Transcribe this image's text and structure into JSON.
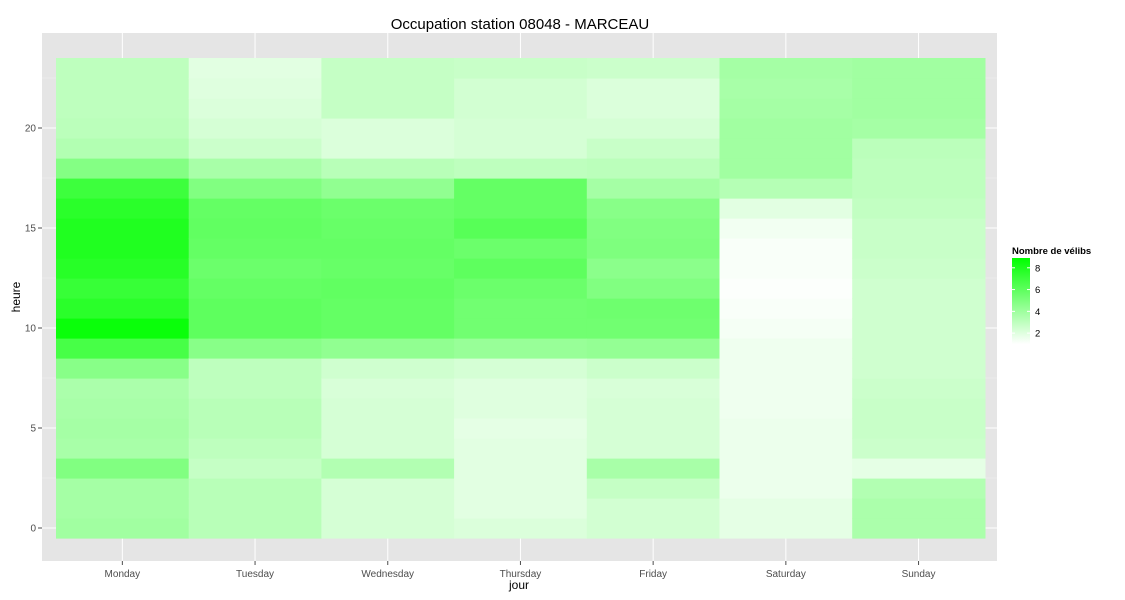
{
  "chart_data": {
    "type": "heatmap",
    "title": "Occupation station 08048 - MARCEAU",
    "xlabel": "jour",
    "ylabel": "heure",
    "categories": [
      "Monday",
      "Tuesday",
      "Wednesday",
      "Thursday",
      "Friday",
      "Saturday",
      "Sunday"
    ],
    "y_hours": [
      0,
      1,
      2,
      3,
      4,
      5,
      6,
      7,
      8,
      9,
      10,
      11,
      12,
      13,
      14,
      15,
      16,
      17,
      18,
      19,
      20,
      21,
      22,
      23
    ],
    "y_ticks": [
      0,
      5,
      10,
      15,
      20
    ],
    "y_tick_labels": [
      "0",
      "5",
      "10",
      "15",
      "20"
    ],
    "ylim": [
      -0.5,
      23.5
    ],
    "values": {
      "Monday": [
        3.9,
        3.8,
        3.8,
        4.9,
        3.7,
        3.8,
        3.7,
        3.6,
        4.7,
        6.7,
        8.6,
        7.6,
        7.2,
        7.7,
        7.9,
        7.9,
        7.6,
        7.0,
        4.8,
        3.4,
        3.1,
        3.0,
        3.0,
        3.0
      ],
      "Tuesday": [
        3.2,
        3.2,
        3.2,
        2.8,
        3.0,
        3.2,
        3.2,
        3.0,
        3.0,
        4.7,
        6.0,
        6.0,
        5.8,
        5.6,
        5.8,
        5.9,
        5.8,
        4.9,
        3.7,
        2.6,
        2.3,
        2.1,
        2.0,
        1.9
      ],
      "Wednesday": [
        2.3,
        2.3,
        2.3,
        3.4,
        2.3,
        2.3,
        2.3,
        2.2,
        2.5,
        4.4,
        5.8,
        5.8,
        5.9,
        5.7,
        5.8,
        5.7,
        5.6,
        4.4,
        3.2,
        2.1,
        2.1,
        2.8,
        2.8,
        2.8
      ],
      "Thursday": [
        2.1,
        1.9,
        1.9,
        1.9,
        1.9,
        1.8,
        2.0,
        2.0,
        2.3,
        4.2,
        5.4,
        5.4,
        5.6,
        6.0,
        5.6,
        6.2,
        5.8,
        5.8,
        3.0,
        2.3,
        2.3,
        2.4,
        2.4,
        2.7
      ],
      "Friday": [
        2.4,
        2.4,
        2.8,
        3.7,
        2.3,
        2.3,
        2.3,
        2.2,
        2.6,
        4.3,
        5.4,
        5.5,
        4.9,
        4.6,
        5.0,
        4.9,
        4.7,
        3.8,
        3.1,
        2.7,
        2.3,
        2.1,
        2.1,
        2.6
      ],
      "Saturday": [
        1.8,
        1.8,
        1.6,
        1.6,
        1.6,
        1.6,
        1.5,
        1.5,
        1.5,
        1.5,
        1.3,
        1.2,
        1.1,
        1.2,
        1.2,
        1.4,
        1.9,
        3.3,
        3.9,
        3.9,
        3.9,
        3.8,
        3.7,
        3.8
      ],
      "Sunday": [
        3.6,
        3.6,
        3.4,
        1.8,
        2.6,
        2.7,
        2.7,
        2.6,
        2.5,
        2.5,
        2.5,
        2.5,
        2.5,
        2.6,
        2.7,
        2.7,
        2.9,
        3.0,
        3.0,
        3.1,
        3.8,
        3.9,
        3.9,
        3.9
      ]
    },
    "legend": {
      "title": "Nombre de vélibs",
      "labels": [
        "8",
        "6",
        "4",
        "2"
      ],
      "values": [
        8,
        6,
        4,
        2
      ],
      "range": [
        1.0,
        8.9
      ],
      "placement": "right"
    },
    "colors": {
      "low": "#ffffff",
      "high": "#00ff00",
      "panel_background": "#e5e5e5",
      "grid": "#ffffff"
    },
    "grid": true
  }
}
